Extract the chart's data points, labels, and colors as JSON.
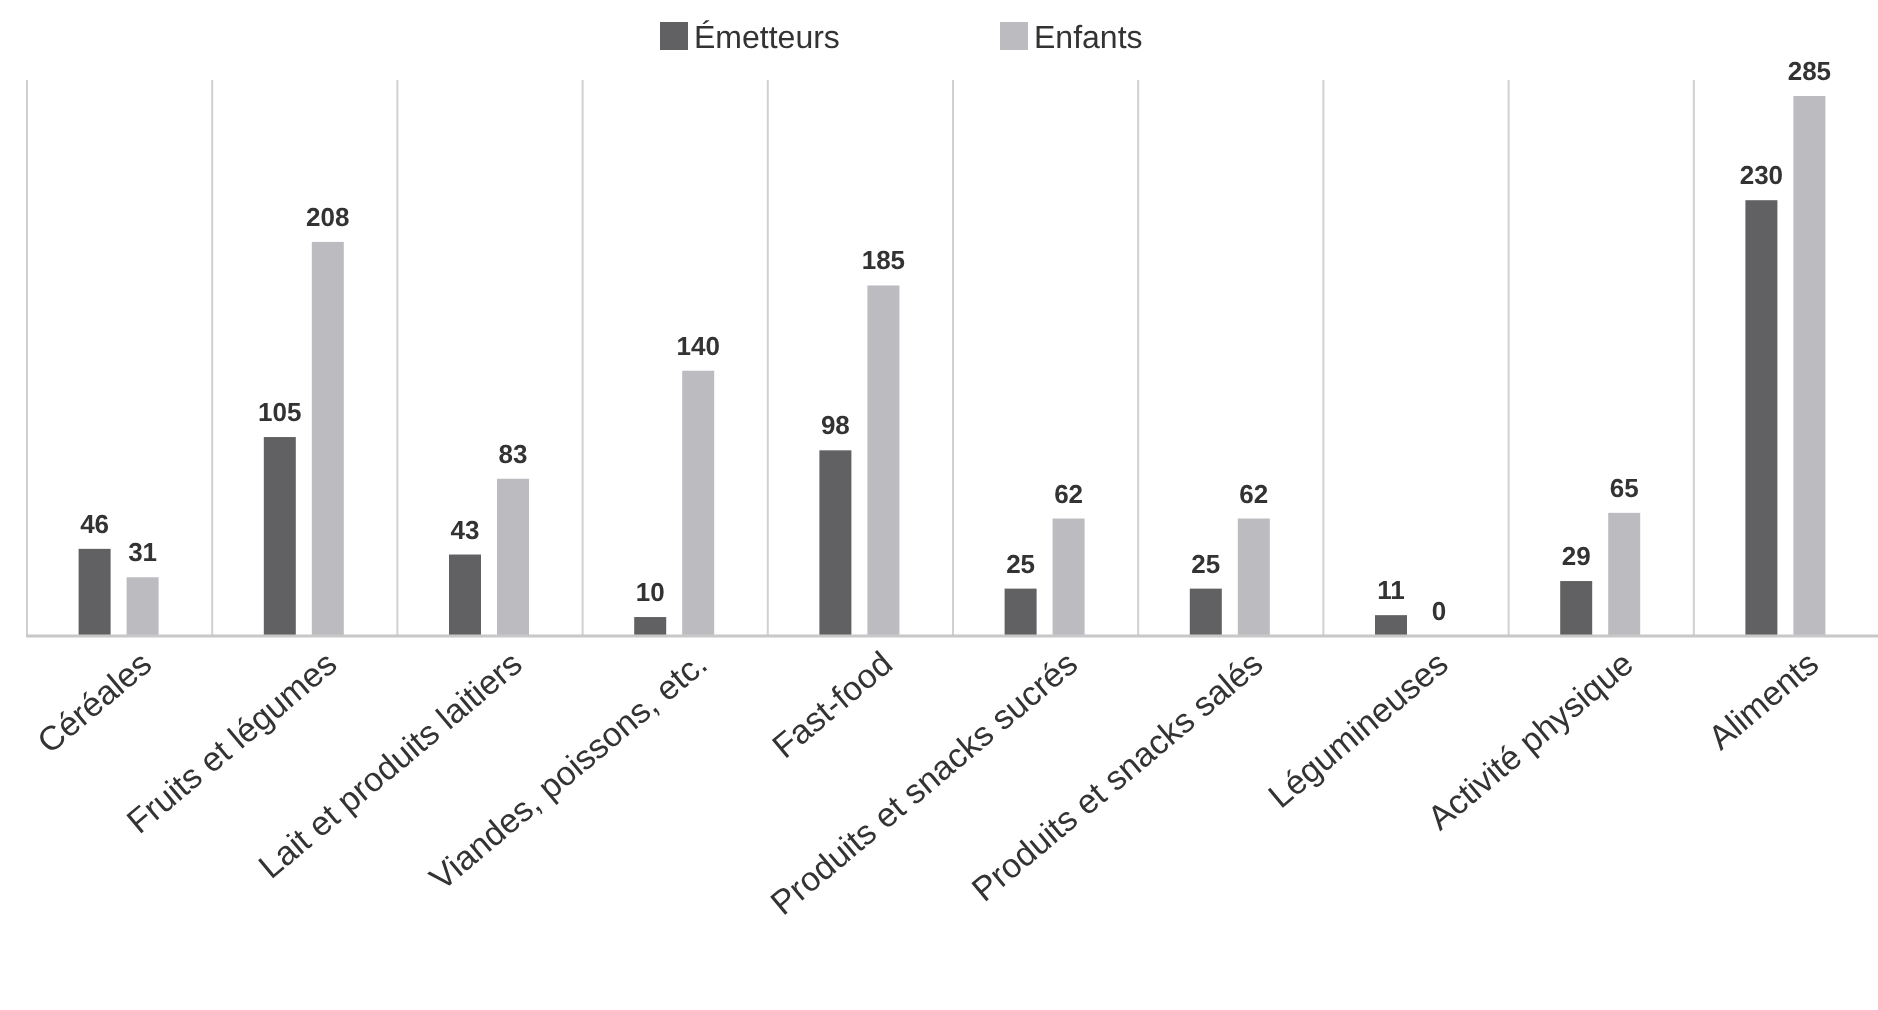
{
  "chart_data": {
    "type": "bar",
    "data_labels": true,
    "legend": "top",
    "grid": "x",
    "categories": [
      "Céréales",
      "Fruits et légumes",
      "Lait et produits laitiers",
      "Viandes, poissons, etc.",
      "Fast-food",
      "Produits et snacks sucrés",
      "Produits et snacks salés",
      "Légumineuses",
      "Activité physique",
      "Aliments"
    ],
    "series": [
      {
        "name": "Émetteurs",
        "color": "#616163",
        "values": [
          46,
          105,
          43,
          10,
          98,
          25,
          25,
          11,
          29,
          230
        ]
      },
      {
        "name": "Enfants",
        "color": "#bcbcc0",
        "values": [
          31,
          208,
          83,
          140,
          185,
          62,
          62,
          0,
          65,
          285
        ]
      }
    ]
  }
}
